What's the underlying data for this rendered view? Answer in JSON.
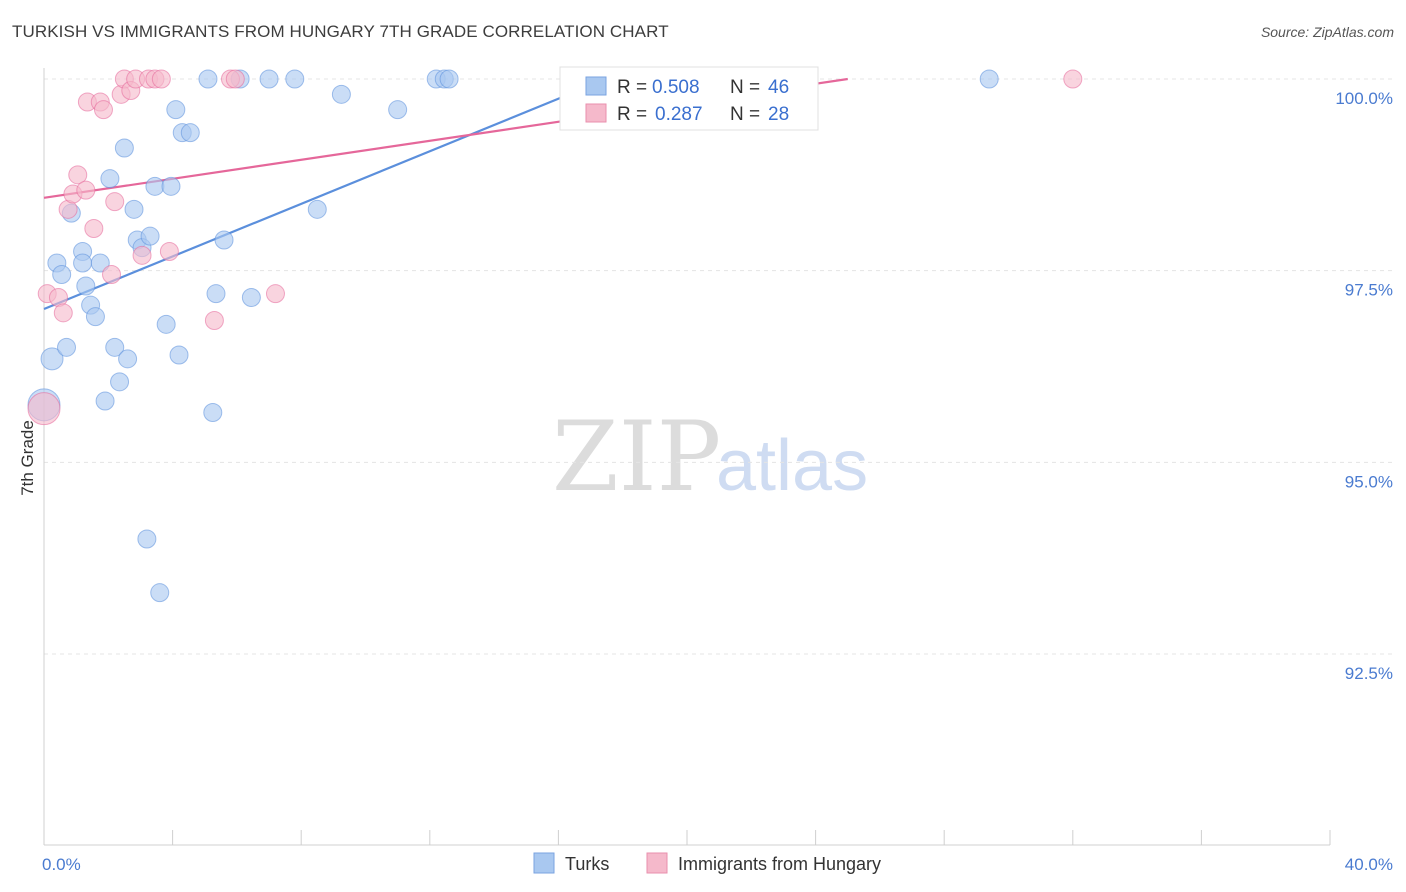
{
  "header": {
    "title": "TURKISH VS IMMIGRANTS FROM HUNGARY 7TH GRADE CORRELATION CHART",
    "source": "Source: ZipAtlas.com"
  },
  "watermark": {
    "zip": "ZIP",
    "atlas": "atlas"
  },
  "stats_box": {
    "rows": [
      {
        "r_label": "R =",
        "r_value": "0.508",
        "n_label": "N =",
        "n_value": "46",
        "color": "#a9c8f0"
      },
      {
        "r_label": "R =",
        "r_value": "0.287",
        "n_label": "N =",
        "n_value": "28",
        "color": "#f5b9cb"
      }
    ]
  },
  "chart_data": {
    "type": "scatter",
    "title": "TURKISH VS IMMIGRANTS FROM HUNGARY 7TH GRADE CORRELATION CHART",
    "xlabel": "",
    "ylabel": "7th Grade",
    "xlim": [
      0,
      40
    ],
    "ylim": [
      90.0,
      100.2
    ],
    "x_tick_labels": [
      {
        "value": 0,
        "label": "0.0%"
      },
      {
        "value": 40,
        "label": "40.0%"
      }
    ],
    "y_tick_labels": [
      {
        "value": 100.0,
        "label": "100.0%"
      },
      {
        "value": 97.5,
        "label": "97.5%"
      },
      {
        "value": 95.0,
        "label": "95.0%"
      },
      {
        "value": 92.5,
        "label": "92.5%"
      }
    ],
    "grid": true,
    "legend": [
      "Turks",
      "Immigrants from Hungary"
    ],
    "series": [
      {
        "name": "Turks",
        "color": "#5b8fdc",
        "fill": "#a9c8f0",
        "trend": {
          "x": [
            0,
            17.5
          ],
          "y": [
            97.0,
            100.0
          ]
        },
        "points": [
          [
            0.25,
            96.35,
            11
          ],
          [
            0.0,
            95.75,
            16
          ],
          [
            0.4,
            97.6,
            9
          ],
          [
            0.55,
            97.45,
            9
          ],
          [
            0.7,
            96.5,
            9
          ],
          [
            0.85,
            98.25,
            9
          ],
          [
            1.2,
            97.75,
            9
          ],
          [
            1.2,
            97.6,
            9
          ],
          [
            1.3,
            97.3,
            9
          ],
          [
            1.45,
            97.05,
            9
          ],
          [
            1.6,
            96.9,
            9
          ],
          [
            1.75,
            97.6,
            9
          ],
          [
            1.9,
            95.8,
            9
          ],
          [
            2.05,
            98.7,
            9
          ],
          [
            2.2,
            96.5,
            9
          ],
          [
            2.35,
            96.05,
            9
          ],
          [
            2.5,
            99.1,
            9
          ],
          [
            2.6,
            96.35,
            9
          ],
          [
            2.8,
            98.3,
            9
          ],
          [
            2.9,
            97.9,
            9
          ],
          [
            3.05,
            97.8,
            9
          ],
          [
            3.2,
            94.0,
            9
          ],
          [
            3.3,
            97.95,
            9
          ],
          [
            3.45,
            98.6,
            9
          ],
          [
            3.6,
            93.3,
            9
          ],
          [
            3.8,
            96.8,
            9
          ],
          [
            3.95,
            98.6,
            9
          ],
          [
            4.1,
            99.6,
            9
          ],
          [
            4.2,
            96.4,
            9
          ],
          [
            4.3,
            99.3,
            9
          ],
          [
            4.55,
            99.3,
            9
          ],
          [
            5.1,
            100.0,
            9
          ],
          [
            5.25,
            95.65,
            9
          ],
          [
            5.35,
            97.2,
            9
          ],
          [
            5.6,
            97.9,
            9
          ],
          [
            6.1,
            100.0,
            9
          ],
          [
            6.45,
            97.15,
            9
          ],
          [
            7.0,
            100.0,
            9
          ],
          [
            7.8,
            100.0,
            9
          ],
          [
            8.5,
            98.3,
            9
          ],
          [
            9.25,
            99.8,
            9
          ],
          [
            11.0,
            99.6,
            9
          ],
          [
            12.2,
            100.0,
            9
          ],
          [
            12.45,
            100.0,
            9
          ],
          [
            12.6,
            100.0,
            9
          ],
          [
            29.4,
            100.0,
            9
          ]
        ]
      },
      {
        "name": "Immigrants from Hungary",
        "color": "#e5679a",
        "fill": "#f5b9cb",
        "trend": {
          "x": [
            0,
            25
          ],
          "y": [
            98.45,
            100.0
          ]
        },
        "points": [
          [
            0.0,
            95.7,
            16
          ],
          [
            0.1,
            97.2,
            9
          ],
          [
            0.45,
            97.15,
            9
          ],
          [
            0.6,
            96.95,
            9
          ],
          [
            0.75,
            98.3,
            9
          ],
          [
            0.9,
            98.5,
            9
          ],
          [
            1.05,
            98.75,
            9
          ],
          [
            1.3,
            98.55,
            9
          ],
          [
            1.35,
            99.7,
            9
          ],
          [
            1.55,
            98.05,
            9
          ],
          [
            1.75,
            99.7,
            9
          ],
          [
            1.85,
            99.6,
            9
          ],
          [
            2.1,
            97.45,
            9
          ],
          [
            2.2,
            98.4,
            9
          ],
          [
            2.4,
            99.8,
            9
          ],
          [
            2.5,
            100.0,
            9
          ],
          [
            2.7,
            99.85,
            9
          ],
          [
            2.85,
            100.0,
            9
          ],
          [
            3.05,
            97.7,
            9
          ],
          [
            3.25,
            100.0,
            9
          ],
          [
            3.45,
            100.0,
            9
          ],
          [
            3.65,
            100.0,
            9
          ],
          [
            3.9,
            97.75,
            9
          ],
          [
            5.3,
            96.85,
            9
          ],
          [
            5.8,
            100.0,
            9
          ],
          [
            5.95,
            100.0,
            9
          ],
          [
            7.2,
            97.2,
            9
          ],
          [
            32.0,
            100.0,
            9
          ]
        ]
      }
    ]
  }
}
